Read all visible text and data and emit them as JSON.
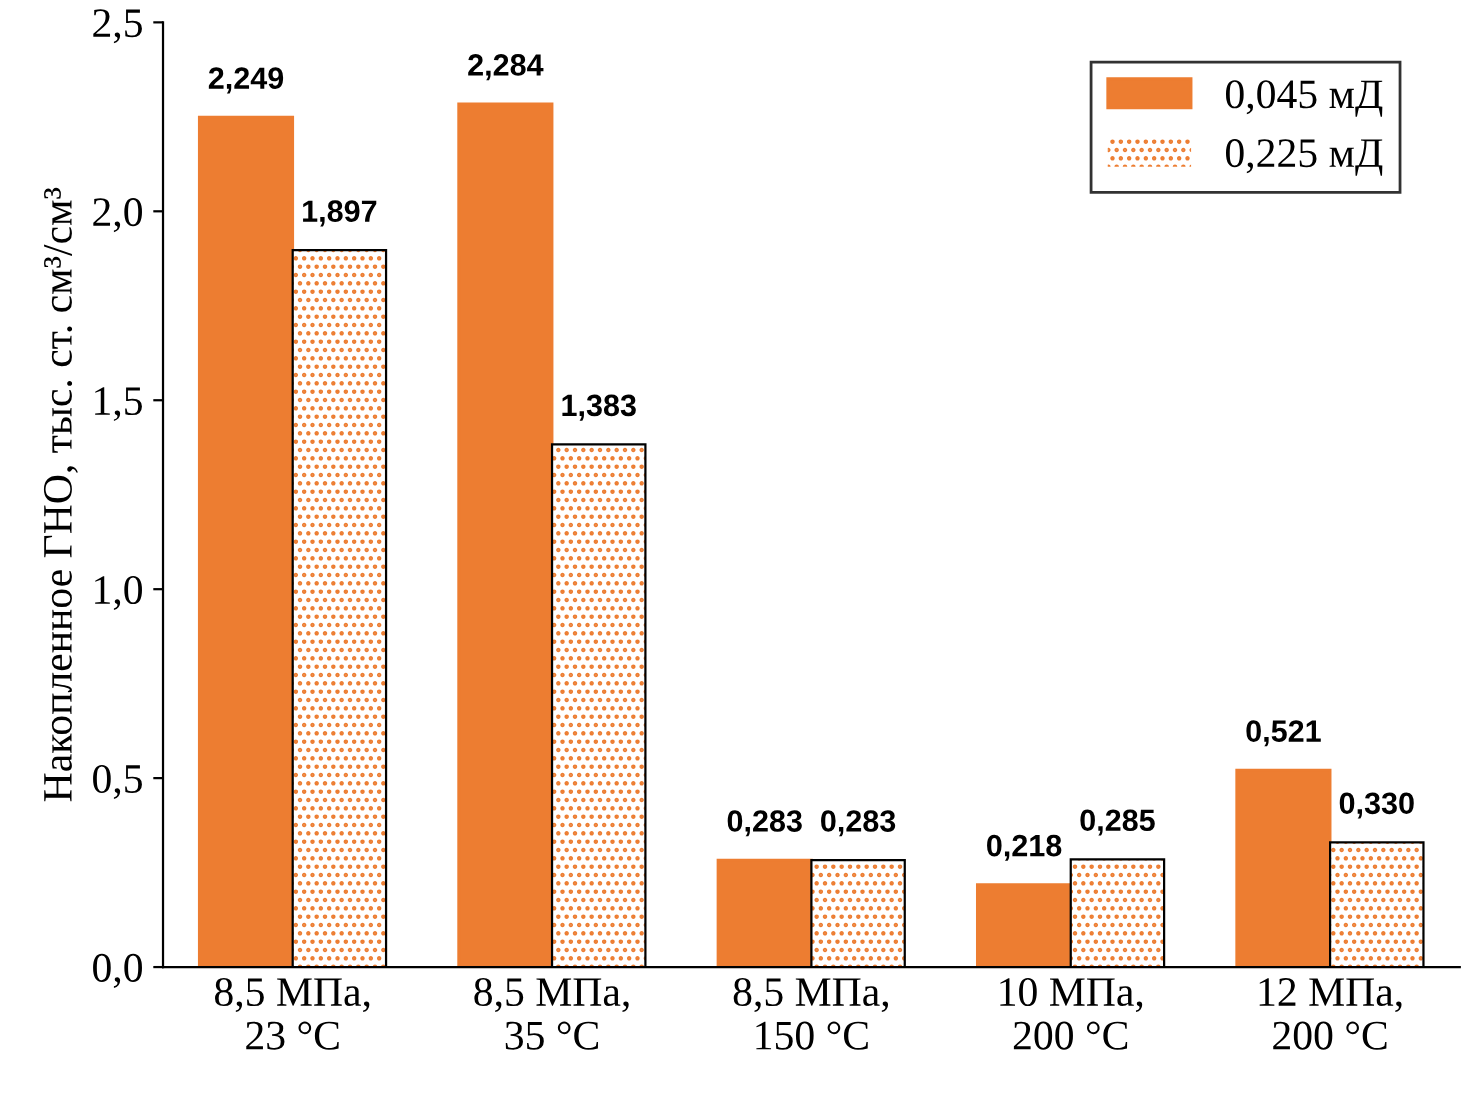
{
  "chart_data": {
    "type": "bar",
    "ylabel": "Накопленное ГНО, тыс. ст. см³/см³",
    "categories": [
      "8,5 МПа,\n23 °С",
      "8,5 МПа,\n35 °С",
      "8,5 МПа,\n150 °С",
      "10 МПа,\n200 °С",
      "12 МПа,\n200 °С"
    ],
    "series": [
      {
        "name": "0,045 мД",
        "color": "#ed7d31",
        "values": [
          2.249,
          2.284,
          0.283,
          0.218,
          0.521
        ],
        "value_labels": [
          "2,249",
          "2,284",
          "0,283",
          "0,218",
          "0,521"
        ]
      },
      {
        "name": "0,225 мД",
        "color": "#ed7d31",
        "values": [
          1.897,
          1.383,
          0.283,
          0.285,
          0.33
        ],
        "value_labels": [
          "1,897",
          "1,383",
          "0,283",
          "0,285",
          "0,330"
        ]
      }
    ],
    "ylim": [
      0,
      2.5
    ],
    "yticks": [
      {
        "value": 0,
        "label": "0,0"
      },
      {
        "value": 0.5,
        "label": "0,5"
      },
      {
        "value": 1.0,
        "label": "1,0"
      },
      {
        "value": 1.5,
        "label": "1,5"
      },
      {
        "value": 2.0,
        "label": "2,0"
      },
      {
        "value": 2.5,
        "label": "2,5"
      }
    ],
    "grid": false,
    "legend": "top right"
  }
}
